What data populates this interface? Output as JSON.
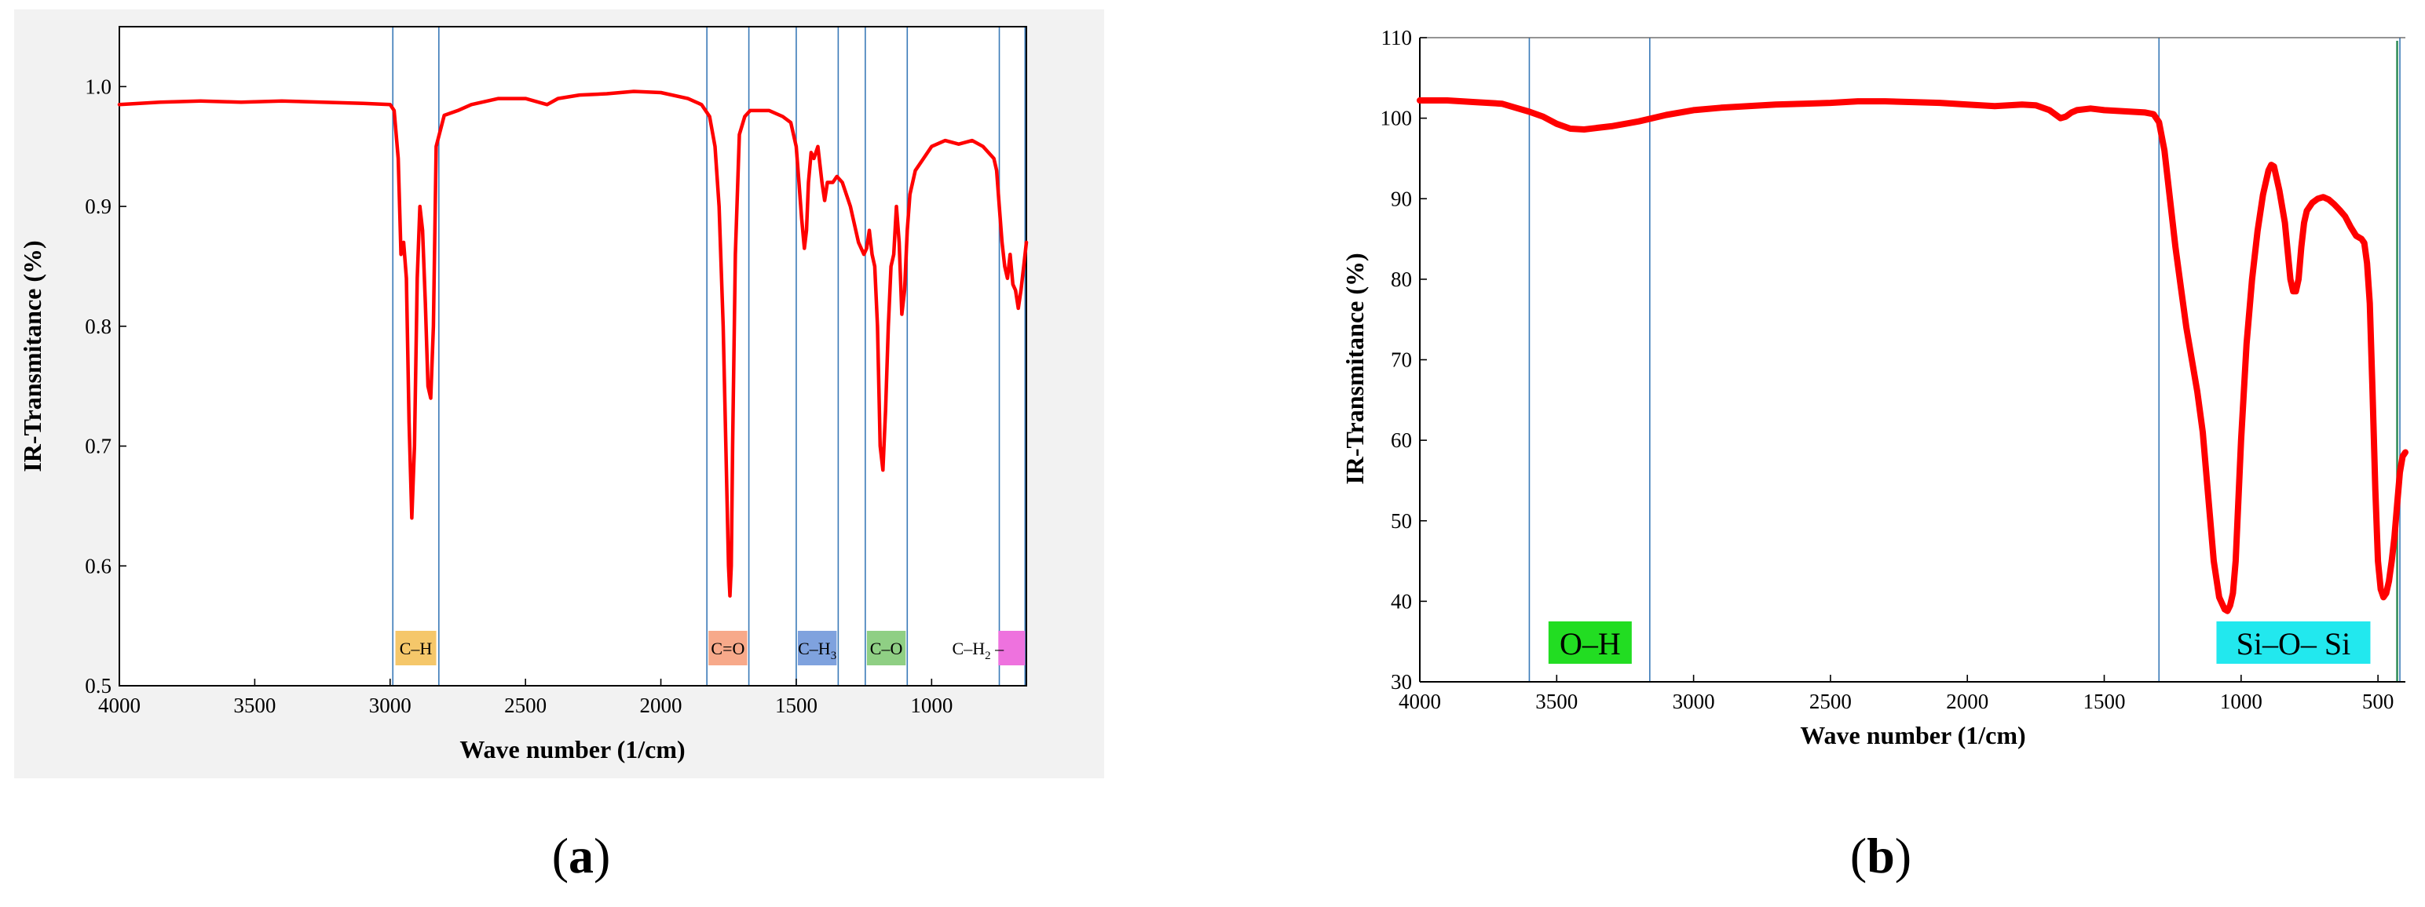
{
  "panels": [
    {
      "caption": {
        "open": "(",
        "letter": "a",
        "close": ")"
      },
      "colors": {
        "curve": "#ff0000",
        "band_line": "#3a7ab8",
        "axis": "#000000"
      },
      "bands": [
        {
          "name": "C–H",
          "label_sub": "",
          "range": [
            2990,
            2820
          ],
          "color": "#f5c76a"
        },
        {
          "name": "C=O",
          "label_sub": "",
          "range": [
            1830,
            1675
          ],
          "color": "#f7a98a"
        },
        {
          "name": "C–H",
          "label_sub": "3",
          "range": [
            1500,
            1345
          ],
          "color": "#7fa2de"
        },
        {
          "name": "C–O",
          "label_sub": "",
          "range": [
            1245,
            1090
          ],
          "color": "#8fcf84"
        },
        {
          "name": "C–H",
          "label_sub": "2",
          "label_tail": " –",
          "range": [
            750,
            655
          ],
          "color": "#ee72de"
        }
      ]
    },
    {
      "caption": {
        "open": "(",
        "letter": "b",
        "close": ")"
      },
      "colors": {
        "curve": "#ff0000",
        "band_line": "#3a7ab8",
        "axis": "#000000",
        "end_line": "#2e8b57"
      },
      "bands": [
        {
          "name": "O–H",
          "range": [
            3600,
            3160
          ],
          "color": "#22dd22"
        },
        {
          "name": "Si–O– Si",
          "range": [
            1300,
            420
          ],
          "color": "#22e8ee"
        }
      ]
    }
  ],
  "chart_data": [
    {
      "type": "line",
      "title": "",
      "xlabel": "Wave number (1/cm)",
      "ylabel": "IR-Transmitance (%)",
      "xlim": [
        4000,
        650
      ],
      "ylim": [
        0.5,
        1.05
      ],
      "x_reversed": true,
      "xticks": [
        4000,
        3500,
        3000,
        2500,
        2000,
        1500,
        1000
      ],
      "yticks": [
        0.5,
        0.6,
        0.7,
        0.8,
        0.9,
        1.0
      ],
      "ytick_labels": [
        "0.5",
        "0.6",
        "0.7",
        "0.8",
        "0.9",
        "1.0"
      ],
      "grid": false,
      "legend": "none",
      "series": [
        {
          "x": [
            4000,
            3850,
            3700,
            3550,
            3400,
            3250,
            3100,
            3000,
            2985,
            2970,
            2960,
            2950,
            2940,
            2930,
            2920,
            2910,
            2900,
            2890,
            2880,
            2870,
            2860,
            2850,
            2840,
            2830,
            2800,
            2750,
            2700,
            2600,
            2500,
            2420,
            2380,
            2300,
            2200,
            2100,
            2000,
            1900,
            1850,
            1820,
            1800,
            1785,
            1770,
            1760,
            1750,
            1745,
            1740,
            1735,
            1725,
            1710,
            1690,
            1670,
            1650,
            1600,
            1550,
            1520,
            1500,
            1490,
            1480,
            1470,
            1462,
            1455,
            1445,
            1435,
            1420,
            1405,
            1395,
            1385,
            1375,
            1365,
            1350,
            1330,
            1300,
            1270,
            1250,
            1240,
            1230,
            1220,
            1210,
            1200,
            1190,
            1180,
            1170,
            1160,
            1150,
            1140,
            1130,
            1120,
            1110,
            1100,
            1090,
            1080,
            1060,
            1030,
            1000,
            950,
            900,
            850,
            810,
            790,
            770,
            760,
            750,
            740,
            730,
            720,
            710,
            700,
            690,
            680,
            670,
            660,
            650
          ],
          "y": [
            0.985,
            0.987,
            0.988,
            0.987,
            0.988,
            0.987,
            0.986,
            0.985,
            0.98,
            0.94,
            0.86,
            0.87,
            0.84,
            0.72,
            0.64,
            0.7,
            0.84,
            0.9,
            0.88,
            0.82,
            0.75,
            0.74,
            0.8,
            0.95,
            0.976,
            0.98,
            0.985,
            0.99,
            0.99,
            0.985,
            0.99,
            0.993,
            0.994,
            0.996,
            0.995,
            0.99,
            0.985,
            0.975,
            0.95,
            0.9,
            0.8,
            0.7,
            0.6,
            0.575,
            0.6,
            0.7,
            0.86,
            0.96,
            0.975,
            0.98,
            0.98,
            0.98,
            0.975,
            0.97,
            0.95,
            0.92,
            0.89,
            0.865,
            0.88,
            0.92,
            0.945,
            0.94,
            0.95,
            0.92,
            0.905,
            0.92,
            0.92,
            0.92,
            0.925,
            0.92,
            0.9,
            0.87,
            0.86,
            0.865,
            0.88,
            0.86,
            0.85,
            0.8,
            0.7,
            0.68,
            0.73,
            0.8,
            0.85,
            0.86,
            0.9,
            0.87,
            0.81,
            0.83,
            0.88,
            0.91,
            0.93,
            0.94,
            0.95,
            0.955,
            0.952,
            0.955,
            0.95,
            0.945,
            0.94,
            0.93,
            0.9,
            0.87,
            0.85,
            0.84,
            0.86,
            0.835,
            0.83,
            0.815,
            0.83,
            0.85,
            0.87
          ]
        }
      ]
    },
    {
      "type": "line",
      "title": "",
      "xlabel": "Wave number (1/cm)",
      "ylabel": "IR-Transmitance (%)",
      "xlim": [
        4000,
        400
      ],
      "ylim": [
        30,
        110
      ],
      "x_reversed": true,
      "xticks": [
        4000,
        3500,
        3000,
        2500,
        2000,
        1500,
        1000,
        500
      ],
      "yticks": [
        30,
        40,
        50,
        60,
        70,
        80,
        90,
        100,
        110
      ],
      "ytick_labels": [
        "30",
        "40",
        "50",
        "60",
        "70",
        "80",
        "90",
        "100",
        "110"
      ],
      "grid": false,
      "legend": "none",
      "series": [
        {
          "x": [
            4000,
            3900,
            3800,
            3700,
            3650,
            3600,
            3550,
            3500,
            3450,
            3400,
            3350,
            3300,
            3250,
            3200,
            3100,
            3000,
            2900,
            2800,
            2700,
            2600,
            2500,
            2400,
            2300,
            2200,
            2100,
            2000,
            1900,
            1800,
            1750,
            1700,
            1680,
            1660,
            1640,
            1620,
            1600,
            1550,
            1500,
            1450,
            1400,
            1350,
            1320,
            1300,
            1280,
            1260,
            1240,
            1220,
            1200,
            1180,
            1160,
            1140,
            1120,
            1100,
            1080,
            1060,
            1050,
            1040,
            1030,
            1020,
            1000,
            980,
            960,
            940,
            920,
            900,
            890,
            880,
            860,
            840,
            820,
            810,
            800,
            790,
            780,
            770,
            760,
            740,
            720,
            700,
            680,
            660,
            640,
            620,
            600,
            580,
            560,
            550,
            540,
            530,
            520,
            510,
            500,
            490,
            480,
            470,
            460,
            450,
            440,
            430,
            420,
            410,
            400
          ],
          "y": [
            102.2,
            102.2,
            102.0,
            101.8,
            101.3,
            100.8,
            100.2,
            99.3,
            98.7,
            98.6,
            98.8,
            99.0,
            99.3,
            99.6,
            100.4,
            101.0,
            101.3,
            101.5,
            101.7,
            101.8,
            101.9,
            102.1,
            102.1,
            102.0,
            101.9,
            101.7,
            101.5,
            101.7,
            101.6,
            101.0,
            100.5,
            100.0,
            100.2,
            100.7,
            101.0,
            101.2,
            101.0,
            100.9,
            100.8,
            100.7,
            100.5,
            99.5,
            96.0,
            90.0,
            84.0,
            79.0,
            74.0,
            70.0,
            66.0,
            61.0,
            53.0,
            45.0,
            40.5,
            39.0,
            38.8,
            39.5,
            41.0,
            45.0,
            60.0,
            72.0,
            80.0,
            86.0,
            90.5,
            93.5,
            94.2,
            94.0,
            91.0,
            87.0,
            80.0,
            78.5,
            78.5,
            80.0,
            84.0,
            87.0,
            88.5,
            89.5,
            90.0,
            90.2,
            89.9,
            89.3,
            88.6,
            87.8,
            86.5,
            85.4,
            85.0,
            84.5,
            82.0,
            77.0,
            66.0,
            54.0,
            45.0,
            41.5,
            40.5,
            41.0,
            42.5,
            45.0,
            48.0,
            52.0,
            56.0,
            58.0,
            58.5
          ]
        }
      ]
    }
  ]
}
